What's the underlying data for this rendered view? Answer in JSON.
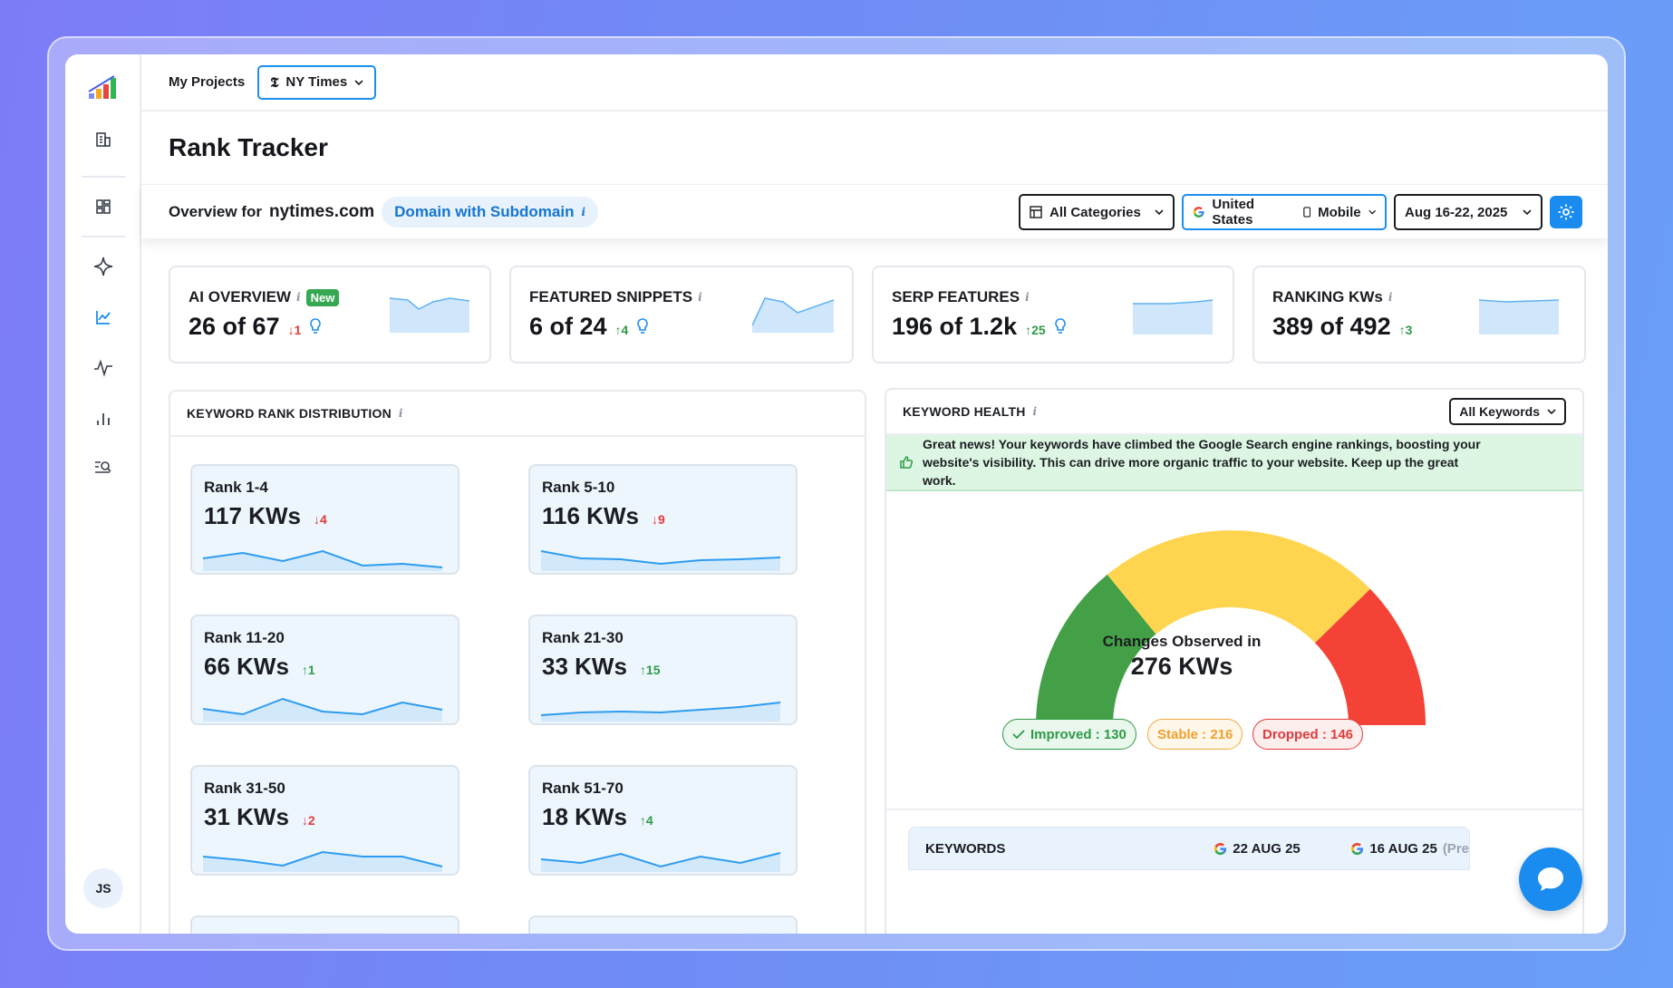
{
  "topbar": {
    "projects_label": "My Projects",
    "project_name": "NY Times"
  },
  "page": {
    "title": "Rank Tracker"
  },
  "filter_bar": {
    "overview_for": "Overview for",
    "domain": "nytimes.com",
    "domain_mode": "Domain with Subdomain",
    "category": "All Categories",
    "country": "United States",
    "device": "Mobile",
    "date_range": "Aug 16-22, 2025"
  },
  "stats": [
    {
      "title": "AI OVERVIEW",
      "badge": "New",
      "value": "26 of 67",
      "delta": "1",
      "direction": "down",
      "bulb": true
    },
    {
      "title": "FEATURED SNIPPETS",
      "value": "6 of 24",
      "delta": "4",
      "direction": "up",
      "bulb": true
    },
    {
      "title": "SERP FEATURES",
      "value": "196 of 1.2k",
      "delta": "25",
      "direction": "up",
      "bulb": true
    },
    {
      "title": "RANKING KWs",
      "value": "389 of 492",
      "delta": "3",
      "direction": "up",
      "bulb": false
    }
  ],
  "rank_distribution": {
    "title": "KEYWORD RANK DISTRIBUTION",
    "cards": [
      {
        "label": "Rank 1-4",
        "value": "117 KWs",
        "delta": "4",
        "direction": "down"
      },
      {
        "label": "Rank 5-10",
        "value": "116 KWs",
        "delta": "9",
        "direction": "down"
      },
      {
        "label": "Rank 11-20",
        "value": "66 KWs",
        "delta": "1",
        "direction": "up"
      },
      {
        "label": "Rank 21-30",
        "value": "33 KWs",
        "delta": "15",
        "direction": "up"
      },
      {
        "label": "Rank 31-50",
        "value": "31 KWs",
        "delta": "2",
        "direction": "down"
      },
      {
        "label": "Rank 51-70",
        "value": "18 KWs",
        "delta": "4",
        "direction": "up"
      }
    ]
  },
  "health": {
    "title": "KEYWORD HEALTH",
    "filter": "All Keywords",
    "notice_bold": "Great news!",
    "notice": "Your keywords have climbed the Google Search engine rankings, boosting your website's visibility. This can drive more organic traffic to your website. Keep up the great work.",
    "gauge_caption": "Changes Observed in",
    "gauge_value": "276 KWs",
    "improved": "Improved : 130",
    "stable": "Stable : 216",
    "dropped": "Dropped : 146",
    "colors": {
      "improved": "#43a047",
      "stable": "#ffd54f",
      "dropped": "#f44336"
    }
  },
  "keywords_table": {
    "col1": "KEYWORDS",
    "col2": "22 AUG 25",
    "col3": "16 AUG 25",
    "col3_suffix": "(Pre"
  },
  "user": {
    "initials": "JS"
  }
}
